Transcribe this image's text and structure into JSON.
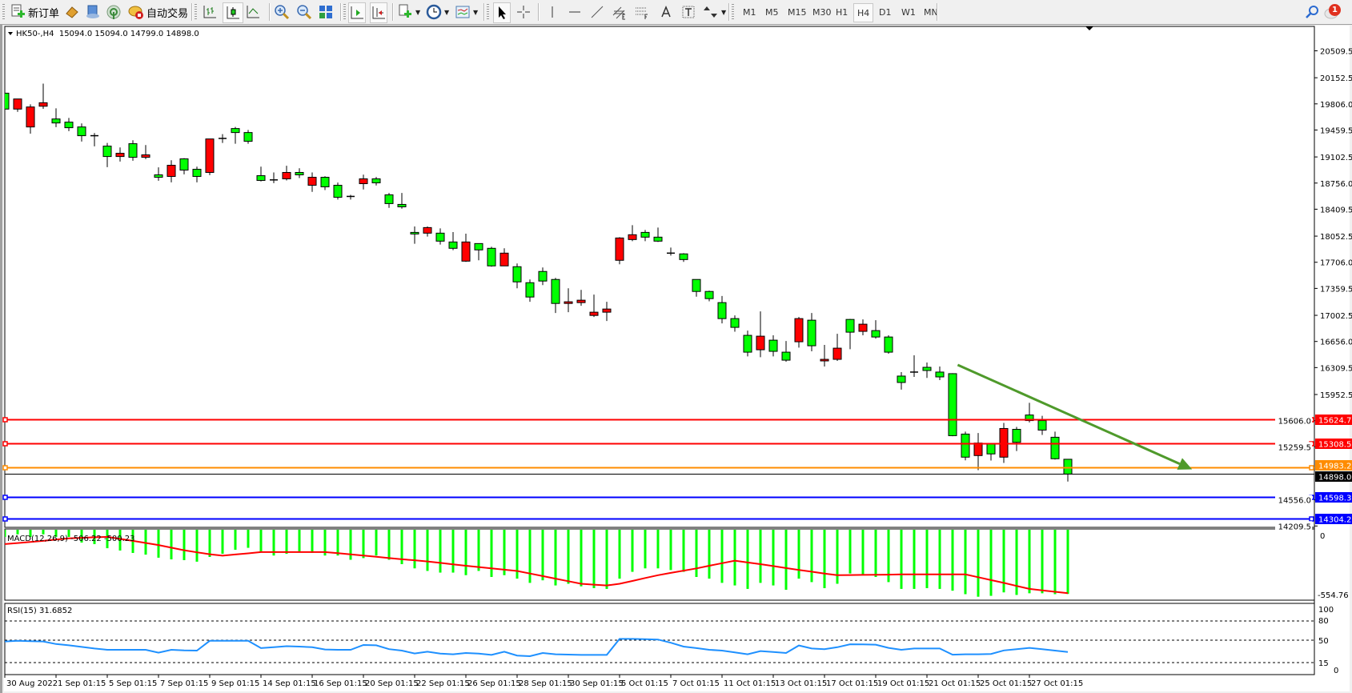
{
  "toolbar": {
    "new_order_label": "新订单",
    "auto_trading_label": "自动交易",
    "timeframes": [
      "M1",
      "M5",
      "M15",
      "M30",
      "H1",
      "H4",
      "D1",
      "W1",
      "MN"
    ],
    "selected_timeframe": "H4",
    "notification_count": "1",
    "icons": [
      "new-order-icon",
      "market-watch-icon",
      "data-window-icon",
      "signals-icon",
      "auto-trading-icon",
      "bar-chart-icon",
      "candlestick-icon",
      "line-chart-icon",
      "zoom-in-icon",
      "zoom-out-icon",
      "tile-windows-icon",
      "chart-shift-icon",
      "autoscroll-icon",
      "indicators-icon",
      "periods-icon",
      "templates-icon",
      "cursor-icon",
      "crosshair-icon",
      "vertical-line-icon",
      "horizontal-line-icon",
      "trendline-icon",
      "equidistant-channel-icon",
      "fibonacci-icon",
      "text-icon",
      "text-label-icon",
      "arrows-icon",
      "search-icon",
      "chat-icon"
    ]
  },
  "chart": {
    "header": "HK50-,H4  15094.0 15094.0 14799.0 14898.0",
    "symbol": "HK50-",
    "timeframe": "H4",
    "ohlc_current": {
      "open": 15094.0,
      "high": 15094.0,
      "low": 14799.0,
      "close": 14898.0
    },
    "colors": {
      "bull": "#ff0000",
      "bear": "#00ff00",
      "outline": "#000000",
      "background": "#ffffff"
    },
    "price_axis": [
      "20509.5",
      "20152.5",
      "19806.0",
      "19459.5",
      "19102.5",
      "18756.0",
      "18409.5",
      "18052.5",
      "17706.0",
      "17359.5",
      "17002.5",
      "16656.0",
      "16309.5",
      "15952.5",
      "15606.0",
      "15259.5",
      "14556.0",
      "14209.5"
    ],
    "time_axis": [
      "30 Aug 2022",
      "1 Sep 01:15",
      "5 Sep 01:15",
      "7 Sep 01:15",
      "9 Sep 01:15",
      "14 Sep 01:15",
      "16 Sep 01:15",
      "20 Sep 01:15",
      "22 Sep 01:15",
      "26 Sep 01:15",
      "28 Sep 01:15",
      "30 Sep 01:15",
      "5 Oct 01:15",
      "7 Oct 01:15",
      "11 Oct 01:15",
      "13 Oct 01:15",
      "17 Oct 01:15",
      "19 Oct 01:15",
      "21 Oct 01:15",
      "25 Oct 01:15",
      "27 Oct 01:15"
    ],
    "candles_ohlc": [
      [
        19948,
        20019,
        19518,
        19737
      ],
      [
        19737,
        19871,
        19701,
        19871
      ],
      [
        19500,
        19800,
        19412,
        19765
      ],
      [
        19775,
        20075,
        19740,
        19821
      ],
      [
        19606,
        19747,
        19497,
        19553
      ],
      [
        19564,
        19620,
        19444,
        19490
      ],
      [
        19500,
        19546,
        19306,
        19384
      ],
      [
        19384,
        19419,
        19243,
        19384
      ],
      [
        19246,
        19288,
        18967,
        19108
      ],
      [
        19108,
        19228,
        19041,
        19151
      ],
      [
        19278,
        19324,
        19052,
        19098
      ],
      [
        19098,
        19260,
        19073,
        19130
      ],
      [
        18865,
        18964,
        18787,
        18833
      ],
      [
        18844,
        19059,
        18766,
        18992
      ],
      [
        19077,
        19087,
        18872,
        18928
      ],
      [
        18939,
        18974,
        18766,
        18844
      ],
      [
        18897,
        19341,
        18861,
        19341
      ],
      [
        19348,
        19405,
        19288,
        19348
      ],
      [
        19479,
        19500,
        19278,
        19426
      ],
      [
        19426,
        19461,
        19278,
        19310
      ],
      [
        18854,
        18974,
        18777,
        18791
      ],
      [
        18798,
        18897,
        18755,
        18798
      ],
      [
        18812,
        18985,
        18791,
        18897
      ],
      [
        18897,
        18953,
        18822,
        18865
      ],
      [
        18727,
        18897,
        18639,
        18833
      ],
      [
        18833,
        18847,
        18664,
        18706
      ],
      [
        18727,
        18763,
        18537,
        18568
      ],
      [
        18579,
        18600,
        18537,
        18579
      ],
      [
        18748,
        18868,
        18671,
        18812
      ],
      [
        18812,
        18837,
        18724,
        18759
      ],
      [
        18600,
        18625,
        18427,
        18484
      ],
      [
        18473,
        18625,
        18417,
        18441
      ],
      [
        18102,
        18180,
        17951,
        18081
      ],
      [
        18092,
        18180,
        18046,
        18166
      ],
      [
        18092,
        18155,
        17940,
        17986
      ],
      [
        17975,
        18106,
        17866,
        17891
      ],
      [
        17721,
        18085,
        17711,
        17975
      ],
      [
        17954,
        17954,
        17732,
        17870
      ],
      [
        17891,
        17912,
        17647,
        17658
      ],
      [
        17658,
        17891,
        17658,
        17827
      ],
      [
        17647,
        17690,
        17361,
        17446
      ],
      [
        17435,
        17478,
        17182,
        17245
      ],
      [
        17584,
        17637,
        17404,
        17457
      ],
      [
        17478,
        17499,
        17033,
        17160
      ],
      [
        17160,
        17361,
        17044,
        17182
      ],
      [
        17171,
        17340,
        17129,
        17203
      ],
      [
        17001,
        17277,
        16980,
        17044
      ],
      [
        17044,
        17182,
        16927,
        17086
      ],
      [
        17732,
        18039,
        17679,
        18028
      ],
      [
        18007,
        18198,
        17986,
        18071
      ],
      [
        18102,
        18134,
        17986,
        18039
      ],
      [
        18039,
        18166,
        17975,
        17986
      ],
      [
        17827,
        17901,
        17795,
        17827
      ],
      [
        17817,
        17827,
        17711,
        17742
      ],
      [
        17478,
        17478,
        17250,
        17319
      ],
      [
        17319,
        17329,
        17188,
        17224
      ],
      [
        17171,
        17259,
        16895,
        16959
      ],
      [
        16959,
        17001,
        16786,
        16843
      ],
      [
        16737,
        16800,
        16458,
        16514
      ],
      [
        16546,
        17054,
        16447,
        16726
      ],
      [
        16673,
        16737,
        16458,
        16525
      ],
      [
        16514,
        16662,
        16387,
        16408
      ],
      [
        16652,
        16980,
        16574,
        16959
      ],
      [
        16938,
        17033,
        16525,
        16599
      ],
      [
        16398,
        16610,
        16324,
        16419
      ],
      [
        16419,
        16758,
        16398,
        16567
      ],
      [
        16948,
        16955,
        16553,
        16779
      ],
      [
        16790,
        16948,
        16737,
        16885
      ],
      [
        16800,
        16938,
        16694,
        16715
      ],
      [
        16715,
        16737,
        16493,
        16514
      ],
      [
        16197,
        16250,
        16017,
        16112
      ],
      [
        16250,
        16472,
        16186,
        16250
      ],
      [
        16313,
        16377,
        16172,
        16271
      ],
      [
        16250,
        16324,
        16144,
        16186
      ],
      [
        16229,
        16235,
        15400,
        15407
      ],
      [
        15428,
        15460,
        15080,
        15122
      ],
      [
        15143,
        15442,
        14950,
        15309
      ],
      [
        15298,
        15309,
        15077,
        15165
      ],
      [
        15122,
        15576,
        15045,
        15502
      ],
      [
        15491,
        15523,
        15203,
        15319
      ],
      [
        15681,
        15843,
        15583,
        15607
      ],
      [
        15607,
        15670,
        15417,
        15481
      ],
      [
        15386,
        15460,
        15091,
        15101
      ],
      [
        15094,
        15094,
        14799,
        14898
      ]
    ],
    "price_lines": [
      {
        "price": 15624.7,
        "label": "15624.7",
        "color": "#ff0000",
        "text_color": "#ffffff"
      },
      {
        "price": 15308.5,
        "label": "15308.5",
        "color": "#ff0000",
        "text_color": "#ffffff"
      },
      {
        "price": 14983.2,
        "label": "14983.2",
        "color": "#ff8c00",
        "text_color": "#ffffff"
      },
      {
        "price": 14898.0,
        "label": "14898.0",
        "color": "#000000",
        "text_color": "#ffffff",
        "kind": "bid"
      },
      {
        "price": 14598.3,
        "label": "14598.3",
        "color": "#0000ff",
        "text_color": "#ffffff"
      },
      {
        "price": 14304.2,
        "label": "14304.2",
        "color": "#0000ff",
        "text_color": "#ffffff"
      }
    ],
    "trend_arrow": {
      "color": "#4f9a2b",
      "start": {
        "bar": 74.4,
        "price": 16345
      },
      "end": {
        "bar": 92.7,
        "price": 14960
      }
    }
  },
  "macd": {
    "label": "MACD(12,26,9) -506.22 -500.23",
    "params": "12,26,9",
    "main_value": "-506.22",
    "signal_value": "-500.23",
    "axis": [
      "0",
      "-554.76"
    ],
    "range": [
      -554.76,
      0
    ],
    "colors": {
      "histogram": "#00ff00",
      "signal": "#ff0000"
    },
    "histogram": [
      -62,
      -42,
      -62,
      -42,
      -62,
      -62,
      -106,
      -118,
      -150,
      -168,
      -187,
      -200,
      -224,
      -237,
      -243,
      -255,
      -218,
      -193,
      -162,
      -147,
      -174,
      -207,
      -194,
      -174,
      -187,
      -207,
      -207,
      -240,
      -227,
      -207,
      -240,
      -274,
      -307,
      -327,
      -340,
      -340,
      -360,
      -327,
      -374,
      -360,
      -387,
      -420,
      -400,
      -440,
      -427,
      -447,
      -461,
      -467,
      -387,
      -334,
      -307,
      -307,
      -320,
      -334,
      -374,
      -387,
      -420,
      -440,
      -467,
      -420,
      -440,
      -474,
      -387,
      -414,
      -461,
      -427,
      -347,
      -354,
      -374,
      -414,
      -467,
      -467,
      -461,
      -467,
      -481,
      -508,
      -528,
      -521,
      -494,
      -514,
      -501,
      -501,
      -508,
      -506.22
    ],
    "signal": [
      -118,
      -110,
      -101,
      -93,
      -83,
      -73,
      -69,
      -65,
      -62,
      -77,
      -93,
      -109,
      -125,
      -146,
      -166,
      -182,
      -197,
      -208,
      -199,
      -190,
      -180,
      -180,
      -180,
      -180,
      -180,
      -180,
      -189,
      -198,
      -207,
      -217,
      -227,
      -236,
      -244,
      -253,
      -264,
      -276,
      -287,
      -297,
      -307,
      -317,
      -327,
      -347,
      -367,
      -387,
      -407,
      -427,
      -434,
      -440,
      -427,
      -405,
      -382,
      -360,
      -342,
      -325,
      -307,
      -287,
      -267,
      -247,
      -261,
      -274,
      -289,
      -305,
      -320,
      -333,
      -347,
      -360,
      -359,
      -358,
      -357,
      -356,
      -354,
      -354,
      -354,
      -354,
      -354,
      -354,
      -376,
      -398,
      -420,
      -444,
      -467,
      -478,
      -489,
      -500.23
    ]
  },
  "rsi": {
    "label": "RSI(15) 31.6852",
    "period": "15",
    "value": "31.6852",
    "axis": [
      "100",
      "80",
      "50",
      "15",
      "0"
    ],
    "levels": [
      80,
      50,
      15
    ],
    "color": "#1e90ff",
    "values": [
      48,
      49,
      48.5,
      48,
      44,
      42,
      39.5,
      37,
      35,
      35,
      35,
      35,
      30.5,
      35,
      34,
      33.8,
      49,
      49,
      49,
      49,
      37.6,
      39,
      40.6,
      40,
      39,
      35.5,
      35,
      35,
      42.5,
      42,
      36,
      33.8,
      29.3,
      32,
      29,
      28,
      30,
      29,
      27,
      32,
      26,
      25,
      30,
      28,
      27.5,
      27,
      27,
      27,
      52,
      52,
      51.5,
      51,
      46,
      40,
      37.6,
      35,
      33.8,
      31,
      28,
      33,
      31.5,
      30,
      41.7,
      37,
      36,
      39,
      43.6,
      43.5,
      43,
      38,
      35,
      37,
      37,
      37,
      27.4,
      28,
      28,
      28.5,
      34,
      36,
      38,
      36,
      33.8,
      31.6852
    ]
  }
}
